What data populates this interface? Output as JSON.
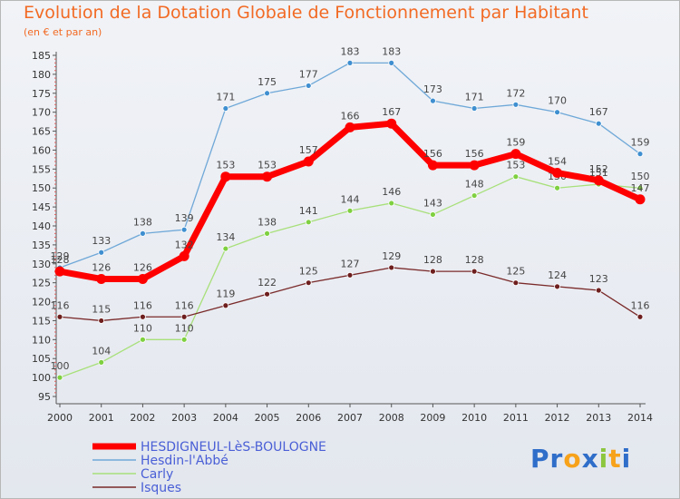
{
  "title": "Evolution de la Dotation Globale de Fonctionnement par Habitant",
  "subtitle": "(en € et par an)",
  "logo": {
    "text": "Proxiti",
    "letters": [
      "P",
      "r",
      "o",
      "x",
      "i",
      "t",
      "i"
    ],
    "colors": [
      "#2f6ec9",
      "#2f6ec9",
      "#f7a21b",
      "#2f6ec9",
      "#8cc63f",
      "#f7a21b",
      "#2f6ec9"
    ]
  },
  "chart_data": {
    "type": "line",
    "title": "Evolution de la Dotation Globale de Fonctionnement par Habitant",
    "subtitle": "(en € et par an)",
    "x": [
      "2000",
      "2001",
      "2002",
      "2003",
      "2004",
      "2005",
      "2006",
      "2007",
      "2008",
      "2009",
      "2010",
      "2011",
      "2012",
      "2013",
      "2014"
    ],
    "ylim": [
      95,
      185
    ],
    "yticks": [
      95,
      100,
      105,
      110,
      115,
      120,
      125,
      130,
      135,
      140,
      145,
      150,
      155,
      160,
      165,
      170,
      175,
      180,
      185
    ],
    "grid": false,
    "legend_position": "bottom-left",
    "series": [
      {
        "name": "Hesdin-l'Abbé",
        "color": "#6fa8d8",
        "point_color": "#3f8fd0",
        "values": [
          129,
          133,
          138,
          139,
          171,
          175,
          177,
          183,
          183,
          173,
          171,
          172,
          170,
          167,
          159
        ]
      },
      {
        "name": "Carly",
        "color": "#a8e07a",
        "point_color": "#7fd040",
        "values": [
          100,
          104,
          110,
          110,
          134,
          138,
          141,
          144,
          146,
          143,
          148,
          153,
          150,
          151,
          150
        ]
      },
      {
        "name": "Isques",
        "color": "#7a2a2a",
        "point_color": "#6e1e1e",
        "values": [
          116,
          115,
          116,
          116,
          119,
          122,
          125,
          127,
          129,
          128,
          128,
          125,
          124,
          123,
          116
        ]
      },
      {
        "name": "HESDIGNEUL-LèS-BOULOGNE",
        "color": "#ff0000",
        "point_color": "#ff0000",
        "thick": true,
        "values": [
          128,
          126,
          126,
          132,
          153,
          153,
          157,
          166,
          167,
          156,
          156,
          159,
          154,
          152,
          147
        ]
      }
    ],
    "legend_order": [
      "HESDIGNEUL-LèS-BOULOGNE",
      "Hesdin-l'Abbé",
      "Carly",
      "Isques"
    ]
  }
}
